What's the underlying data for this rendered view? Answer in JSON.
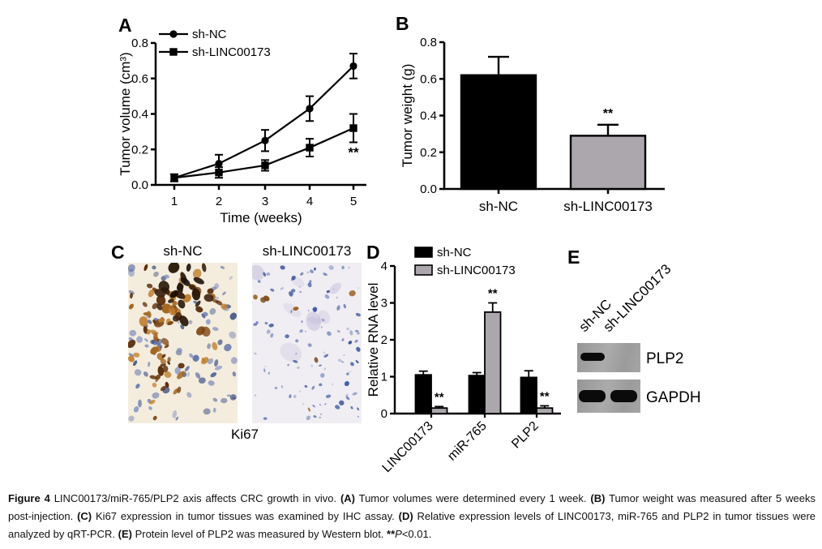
{
  "colors": {
    "black": "#000000",
    "gray_bar": "#aba7ac",
    "blot_panel_bg": "#a1a1a1",
    "band_color": "#0b0b0b",
    "ihc": {
      "left_bg": "#f4edde",
      "right_bg": "#f0eef2",
      "hematoxylin_blues": [
        "#3d548f",
        "#5c6ea6",
        "#8290bf",
        "#2f4378"
      ],
      "dab_browns": [
        "#a4661f",
        "#7c4312",
        "#5a2d0a",
        "#c08030"
      ],
      "dark_nuclei": [
        "#2a1808",
        "#1c1005",
        "#3c2410"
      ],
      "right_blues": [
        "#2f4f9e",
        "#5a71b2",
        "#8b9ac9",
        "#43599c"
      ],
      "right_purples": [
        "#a79ecb",
        "#b7aed6"
      ],
      "right_browns": [
        "#9a6428",
        "#7a4a18"
      ]
    }
  },
  "panels": {
    "A": {
      "label": "A"
    },
    "B": {
      "label": "B"
    },
    "C": {
      "label": "C",
      "col_titles": [
        "sh-NC",
        "sh-LINC00173"
      ],
      "stain_label": "Ki67"
    },
    "D": {
      "label": "D"
    },
    "E": {
      "label": "E",
      "lanes": [
        "sh-NC",
        "sh-LINC00173"
      ],
      "blots": [
        {
          "name": "PLP2",
          "bands": [
            1,
            0
          ]
        },
        {
          "name": "GAPDH",
          "bands": [
            1,
            1
          ]
        }
      ]
    }
  },
  "chart_data": [
    {
      "id": "A",
      "type": "line",
      "title": "",
      "xlabel": "Time (weeks)",
      "ylabel": "Tumor volume (cm³)",
      "x": [
        1,
        2,
        3,
        4,
        5
      ],
      "ylim": [
        0,
        0.8
      ],
      "yticks": [
        0.0,
        0.2,
        0.4,
        0.6,
        0.8
      ],
      "grid": false,
      "legend_position": "top-left",
      "series": [
        {
          "name": "sh-NC",
          "marker": "circle",
          "values": [
            0.04,
            0.12,
            0.25,
            0.43,
            0.67
          ],
          "errors": [
            0.02,
            0.05,
            0.06,
            0.07,
            0.07
          ]
        },
        {
          "name": "sh-LINC00173",
          "marker": "square",
          "values": [
            0.04,
            0.07,
            0.11,
            0.21,
            0.32
          ],
          "errors": [
            0.02,
            0.03,
            0.03,
            0.05,
            0.08
          ]
        }
      ],
      "annotation": {
        "text": "**",
        "at_x": 5,
        "on_series": "sh-LINC00173"
      }
    },
    {
      "id": "B",
      "type": "bar",
      "title": "",
      "xlabel": "",
      "ylabel": "Tumor weight (g)",
      "categories": [
        "sh-NC",
        "sh-LINC00173"
      ],
      "values": [
        0.62,
        0.29
      ],
      "errors": [
        0.1,
        0.06
      ],
      "bar_colors": [
        "#000000",
        "#aba7ac"
      ],
      "ylim": [
        0,
        0.8
      ],
      "yticks": [
        0.0,
        0.2,
        0.4,
        0.6,
        0.8
      ],
      "grid": false,
      "sig": [
        null,
        "**"
      ]
    },
    {
      "id": "D",
      "type": "grouped-bar",
      "title": "",
      "xlabel": "",
      "ylabel": "Relative RNA level",
      "categories": [
        "LINC00173",
        "miR-765",
        "PLP2"
      ],
      "ylim": [
        0,
        4
      ],
      "yticks": [
        0,
        1,
        2,
        3,
        4
      ],
      "grid": false,
      "legend_position": "top",
      "series": [
        {
          "name": "sh-NC",
          "color": "#000000",
          "values": [
            1.05,
            1.03,
            0.98
          ],
          "errors": [
            0.1,
            0.08,
            0.18
          ],
          "sig": [
            null,
            null,
            null
          ]
        },
        {
          "name": "sh-LINC00173",
          "color": "#aba7ac",
          "values": [
            0.15,
            2.75,
            0.15
          ],
          "errors": [
            0.04,
            0.25,
            0.06
          ],
          "sig": [
            "**",
            "**",
            "**"
          ]
        }
      ]
    }
  ],
  "caption": {
    "segments": [
      {
        "text": "Figure 4",
        "bold": true
      },
      {
        "text": " LINC00173/miR-765/PLP2 axis affects CRC growth in vivo. ",
        "bold": false
      },
      {
        "text": "(A)",
        "bold": true
      },
      {
        "text": " Tumor volumes were determined every 1 week. ",
        "bold": false
      },
      {
        "text": "(B)",
        "bold": true
      },
      {
        "text": " Tumor weight was measured after 5 weeks post-injection. ",
        "bold": false
      },
      {
        "text": "(C)",
        "bold": true
      },
      {
        "text": " Ki67 expression in tumor tissues was examined by IHC assay. ",
        "bold": false
      },
      {
        "text": "(D)",
        "bold": true
      },
      {
        "text": " Relative expression levels of LINC00173, miR-765 and PLP2 in tumor tissues were analyzed by qRT-PCR. ",
        "bold": false
      },
      {
        "text": "(E)",
        "bold": true
      },
      {
        "text": " Protein level of PLP2 was measured by Western blot. ",
        "bold": false
      },
      {
        "text": "**",
        "bold": true
      },
      {
        "text": "P",
        "italic": true
      },
      {
        "text": "<0.01.",
        "bold": false
      }
    ]
  }
}
